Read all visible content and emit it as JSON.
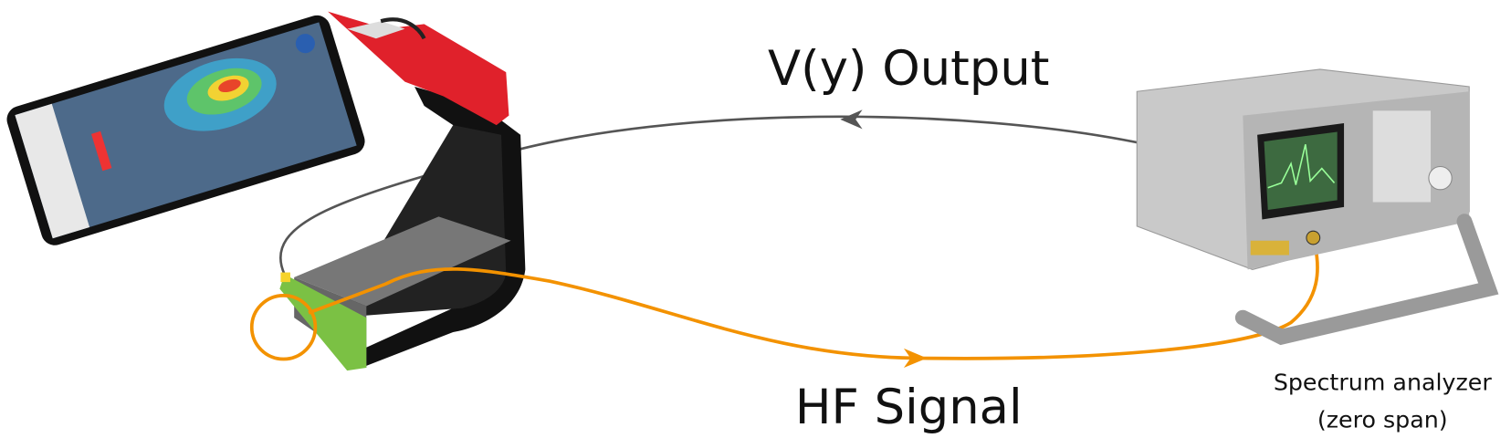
{
  "labels": {
    "output": "V(y) Output",
    "input": "HF Signal",
    "device_line1": "Spectrum analyzer",
    "device_line2": "(zero span)"
  }
}
